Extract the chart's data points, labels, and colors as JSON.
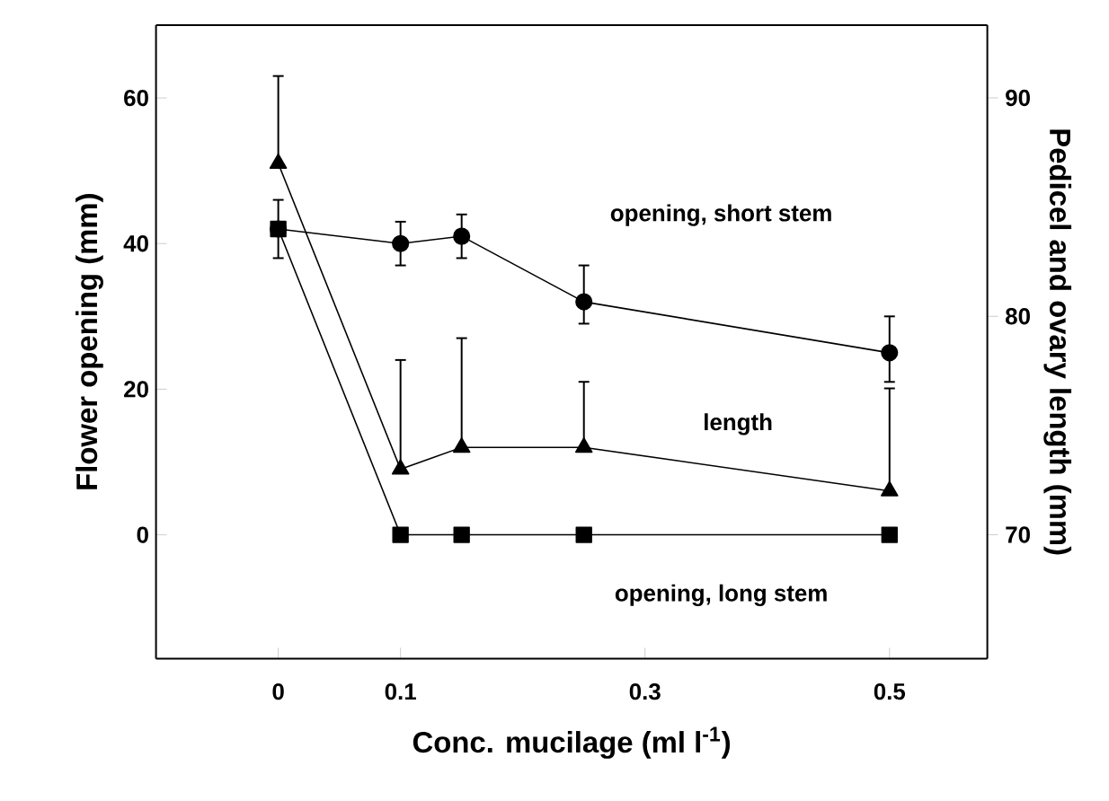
{
  "chart_data": {
    "type": "line",
    "xlabel": "Conc. mucilage (ml l$^{-1}$)",
    "ylabel": "Flower opening (mm)",
    "y2label": "Pedicel and ovary length (mm)",
    "xlim": [
      -0.1,
      0.58
    ],
    "xticks": [
      0,
      0.1,
      0.3,
      0.5
    ],
    "ylim": [
      -17,
      70
    ],
    "yticks": [
      0,
      20,
      40,
      60
    ],
    "y2lim": [
      64.33,
      93.33
    ],
    "y2ticks": [
      70,
      80,
      90
    ],
    "x": [
      0,
      0.1,
      0.15,
      0.25,
      0.5
    ],
    "series": [
      {
        "color": "#000000",
        "marker": "circle",
        "values": [
          42,
          40,
          41,
          32,
          25
        ],
        "errors": [
          null,
          3,
          3,
          [
            29,
            37
          ],
          [
            21,
            30
          ]
        ]
      },
      {
        "color": "#000000",
        "marker": "triangle",
        "axis": "y2",
        "values": [
          87,
          73,
          74,
          74,
          72
        ],
        "errors": [
          [
            87,
            91
          ],
          [
            73,
            78
          ],
          [
            74,
            79
          ],
          [
            74,
            77
          ],
          [
            72,
            76.7
          ]
        ]
      },
      {
        "color": "#000000",
        "marker": "square",
        "values": [
          42,
          0,
          0,
          0,
          0
        ],
        "errors": [
          4,
          null,
          null,
          null,
          null
        ]
      }
    ],
    "annotations": [
      "opening, short stem",
      "length",
      "opening, long stem"
    ]
  }
}
